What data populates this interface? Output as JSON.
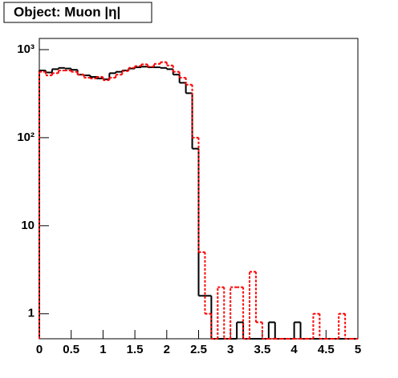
{
  "chart_data": {
    "type": "histogram",
    "title": "Object: Muon |η|",
    "log_y": true,
    "bins": [
      0,
      0.1,
      0.2,
      0.3,
      0.4,
      0.5,
      0.6,
      0.7,
      0.8,
      0.9,
      1,
      1.1,
      1.2,
      1.3,
      1.4,
      1.5,
      1.6,
      1.7,
      1.8,
      1.9,
      2,
      2.1,
      2.2,
      2.3,
      2.4,
      2.5,
      2.6,
      2.7,
      2.8,
      2.9,
      3,
      3.1,
      3.2,
      3.3,
      3.4,
      3.5,
      3.6,
      3.7,
      3.8,
      3.9,
      4,
      4.1,
      4.2,
      4.3,
      4.4,
      4.5,
      4.6,
      4.7,
      4.8,
      4.9,
      5
    ],
    "series": [
      {
        "color": "#000000",
        "style": "solid",
        "values": [
          580,
          550,
          600,
          620,
          610,
          590,
          520,
          510,
          490,
          470,
          460,
          540,
          560,
          580,
          610,
          630,
          640,
          630,
          630,
          620,
          600,
          520,
          420,
          320,
          75,
          1.6,
          1.6,
          0,
          0,
          0,
          0,
          0.8,
          0,
          0,
          0,
          0,
          0.8,
          0,
          0,
          0,
          0.8,
          0,
          0,
          0,
          0,
          0,
          0,
          0,
          0,
          0
        ]
      },
      {
        "color": "#ff0000",
        "style": "dashed",
        "values": [
          560,
          510,
          540,
          580,
          580,
          560,
          520,
          480,
          470,
          490,
          450,
          480,
          520,
          570,
          620,
          650,
          680,
          640,
          690,
          720,
          660,
          560,
          480,
          400,
          100,
          5,
          1,
          0,
          2,
          0,
          2,
          2,
          0,
          3,
          0.8,
          0,
          0,
          0,
          0,
          0,
          0,
          0,
          0,
          1,
          0,
          0,
          0,
          1,
          0,
          0
        ]
      }
    ],
    "xlim": [
      0,
      5
    ],
    "xticks": [
      0,
      0.5,
      1,
      1.5,
      2,
      2.5,
      3,
      3.5,
      4,
      4.5,
      5
    ],
    "ylim": [
      0.52,
      1340
    ],
    "yticks": [
      1,
      10,
      {
        "value": 100,
        "label": "10²"
      },
      {
        "value": 1000,
        "label": "10³"
      }
    ]
  }
}
